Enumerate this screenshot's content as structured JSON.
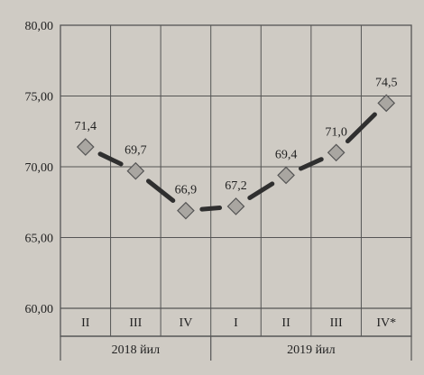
{
  "chart_data": {
    "type": "line",
    "title": "",
    "xlabel": "",
    "ylabel": "",
    "ylim": [
      60,
      80
    ],
    "yticks": [
      "60,00",
      "65,00",
      "70,00",
      "75,00",
      "80,00"
    ],
    "ytick_values": [
      60,
      65,
      70,
      75,
      80
    ],
    "categories": [
      "II",
      "III",
      "IV",
      "I",
      "II",
      "III",
      "IV*"
    ],
    "groups": [
      {
        "label": "2018 йил",
        "span": [
          0,
          2
        ]
      },
      {
        "label": "2019 йил",
        "span": [
          3,
          6
        ]
      }
    ],
    "series": [
      {
        "values": [
          71.4,
          69.7,
          66.9,
          67.2,
          69.4,
          71.0,
          74.5
        ],
        "labels": [
          "71,4",
          "69,7",
          "66,9",
          "67,2",
          "69,4",
          "71,0",
          "74,5"
        ]
      }
    ],
    "grid": true,
    "colors": {
      "line": "#2f2f2f",
      "marker": "#a9a6a1",
      "marker_stroke": "#555555",
      "grid": "#555555"
    }
  }
}
